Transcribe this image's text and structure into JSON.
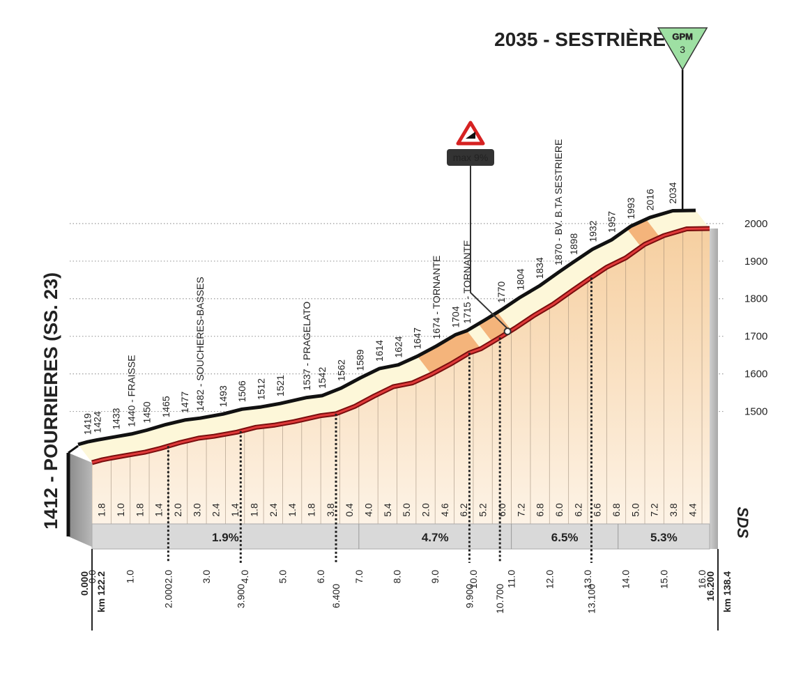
{
  "chart_data": {
    "type": "area",
    "title": "2035 - SESTRIÈRE",
    "start_label": "1412 - POURRIERES (SS. 23)",
    "climb_category": {
      "label": "GPM",
      "category": "3"
    },
    "max_gradient_label": "max 9%",
    "logo": "SDS",
    "y_ticks": [
      1500,
      1600,
      1700,
      1800,
      1900,
      2000
    ],
    "x_ticks": [
      "0.0",
      "1.0",
      "2.0",
      "3.0",
      "4.0",
      "5.0",
      "6.0",
      "7.0",
      "8.0",
      "9.0",
      "10.0",
      "11.0",
      "12.0",
      "13.0",
      "14.0",
      "15.0",
      "16.0"
    ],
    "ylim": [
      1412,
      2035
    ],
    "xlim": [
      0,
      16.2
    ],
    "profile": [
      {
        "x": 0.0,
        "y": 1412
      },
      {
        "x": 0.25,
        "y": 1419
      },
      {
        "x": 0.5,
        "y": 1424
      },
      {
        "x": 1.0,
        "y": 1433
      },
      {
        "x": 1.4,
        "y": 1440
      },
      {
        "x": 1.8,
        "y": 1450
      },
      {
        "x": 2.3,
        "y": 1465
      },
      {
        "x": 2.8,
        "y": 1477
      },
      {
        "x": 3.2,
        "y": 1482
      },
      {
        "x": 3.8,
        "y": 1493
      },
      {
        "x": 4.3,
        "y": 1506
      },
      {
        "x": 4.8,
        "y": 1512
      },
      {
        "x": 5.3,
        "y": 1521
      },
      {
        "x": 6.0,
        "y": 1537
      },
      {
        "x": 6.4,
        "y": 1542
      },
      {
        "x": 6.9,
        "y": 1562
      },
      {
        "x": 7.4,
        "y": 1589
      },
      {
        "x": 7.9,
        "y": 1614
      },
      {
        "x": 8.4,
        "y": 1624
      },
      {
        "x": 8.9,
        "y": 1647
      },
      {
        "x": 9.4,
        "y": 1674
      },
      {
        "x": 9.9,
        "y": 1704
      },
      {
        "x": 10.2,
        "y": 1715
      },
      {
        "x": 10.7,
        "y": 1745
      },
      {
        "x": 11.1,
        "y": 1770
      },
      {
        "x": 11.6,
        "y": 1804
      },
      {
        "x": 12.1,
        "y": 1834
      },
      {
        "x": 12.6,
        "y": 1870
      },
      {
        "x": 13.0,
        "y": 1898
      },
      {
        "x": 13.5,
        "y": 1932
      },
      {
        "x": 14.0,
        "y": 1957
      },
      {
        "x": 14.5,
        "y": 1993
      },
      {
        "x": 15.0,
        "y": 2016
      },
      {
        "x": 15.6,
        "y": 2034
      },
      {
        "x": 16.2,
        "y": 2035
      }
    ],
    "point_labels": [
      {
        "x": 0.25,
        "text": "1419"
      },
      {
        "x": 0.5,
        "text": "1424"
      },
      {
        "x": 1.0,
        "text": "1433"
      },
      {
        "x": 1.4,
        "text": "1440 - FRAISSE"
      },
      {
        "x": 1.8,
        "text": "1450"
      },
      {
        "x": 2.3,
        "text": "1465"
      },
      {
        "x": 2.8,
        "text": "1477"
      },
      {
        "x": 3.2,
        "text": "1482 - SOUCHERES-BASSES"
      },
      {
        "x": 3.8,
        "text": "1493"
      },
      {
        "x": 4.3,
        "text": "1506"
      },
      {
        "x": 4.8,
        "text": "1512"
      },
      {
        "x": 5.3,
        "text": "1521"
      },
      {
        "x": 6.0,
        "text": "1537 - PRAGELATO"
      },
      {
        "x": 6.4,
        "text": "1542"
      },
      {
        "x": 6.9,
        "text": "1562"
      },
      {
        "x": 7.4,
        "text": "1589"
      },
      {
        "x": 7.9,
        "text": "1614"
      },
      {
        "x": 8.4,
        "text": "1624"
      },
      {
        "x": 8.9,
        "text": "1647"
      },
      {
        "x": 9.4,
        "text": "1674 - TORNANTE"
      },
      {
        "x": 9.9,
        "text": "1704"
      },
      {
        "x": 10.2,
        "text": "1715 - TORNANTE"
      },
      {
        "x": 11.1,
        "text": "1770"
      },
      {
        "x": 11.6,
        "text": "1804"
      },
      {
        "x": 12.1,
        "text": "1834"
      },
      {
        "x": 12.6,
        "text": "1870 - BV. B.TA SESTRIERE"
      },
      {
        "x": 13.0,
        "text": "1898"
      },
      {
        "x": 13.5,
        "text": "1932"
      },
      {
        "x": 14.0,
        "text": "1957"
      },
      {
        "x": 14.5,
        "text": "1993"
      },
      {
        "x": 15.0,
        "text": "2016"
      },
      {
        "x": 15.6,
        "text": "2034"
      }
    ],
    "gradients": [
      "1.8",
      "1.0",
      "1.8",
      "1.4",
      "2.0",
      "3.0",
      "2.4",
      "1.4",
      "1.8",
      "2.4",
      "1.4",
      "1.8",
      "3.8",
      "0.4",
      "4.0",
      "5.4",
      "5.0",
      "2.0",
      "4.6",
      "6.2",
      "5.2",
      "6.0",
      "7.2",
      "6.8",
      "6.0",
      "6.2",
      "6.6",
      "6.8",
      "5.0",
      "7.2",
      "3.8",
      "4.4"
    ],
    "average_gradients": [
      {
        "from": 0.0,
        "to": 7.0,
        "text": "1.9%"
      },
      {
        "from": 7.0,
        "to": 11.0,
        "text": "4.7%"
      },
      {
        "from": 11.0,
        "to": 13.8,
        "text": "6.5%"
      },
      {
        "from": 13.8,
        "to": 16.2,
        "text": "5.3%"
      }
    ],
    "steep_sections": [
      {
        "from": 8.9,
        "to": 10.2
      },
      {
        "from": 10.5,
        "to": 11.0
      },
      {
        "from": 14.4,
        "to": 14.9
      }
    ],
    "max_gradient_at": 10.9,
    "km_markers": [
      {
        "x": 2.0,
        "text": "2.000"
      },
      {
        "x": 3.9,
        "text": "3.900"
      },
      {
        "x": 6.4,
        "text": "6.400"
      },
      {
        "x": 9.9,
        "text": "9.900"
      },
      {
        "x": 10.7,
        "text": "10.700"
      },
      {
        "x": 13.1,
        "text": "13.100"
      }
    ],
    "start_km": {
      "distance": "0.000",
      "km": "km 122.2"
    },
    "end_km": {
      "distance": "16.200",
      "km": "km 138.4"
    }
  }
}
